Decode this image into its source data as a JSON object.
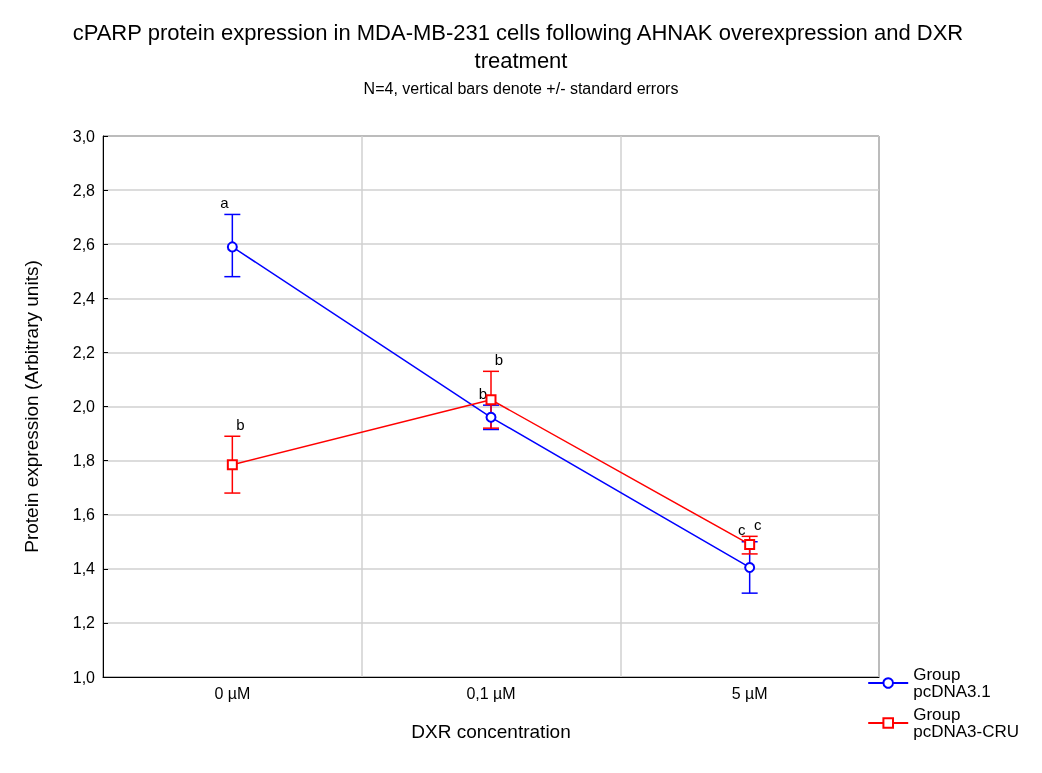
{
  "chart_data": {
    "type": "line",
    "title": "cPARP protein expression in MDA-MB-231 cells following AHNAK overexpression and DXR treatment",
    "subtitle": "N=4, vertical bars denote +/- standard errors",
    "xlabel": "DXR concentration",
    "ylabel": "Protein expression (Arbitrary units)",
    "categories": [
      "0 µM",
      "0,1 µM",
      "5 µM"
    ],
    "series": [
      {
        "name": "Group pcDNA3.1",
        "color": "#0000ff",
        "marker": "circle",
        "values": [
          2.59,
          1.96,
          1.405
        ],
        "errors": [
          [
            2.48,
            2.71
          ],
          [
            1.915,
            2.005
          ],
          [
            1.31,
            1.5
          ]
        ]
      },
      {
        "name": "Group pcDNA3-CRU",
        "color": "#ff0000",
        "marker": "square",
        "values": [
          1.785,
          2.025,
          1.49
        ],
        "errors": [
          [
            1.68,
            1.89
          ],
          [
            1.92,
            2.13
          ],
          [
            1.455,
            1.52
          ]
        ]
      }
    ],
    "ylim": [
      1,
      3
    ],
    "yticks": [
      {
        "value": 1,
        "label": "1,0"
      },
      {
        "value": 1.2,
        "label": "1,2"
      },
      {
        "value": 1.4,
        "label": "1,4"
      },
      {
        "value": 1.6,
        "label": "1,6"
      },
      {
        "value": 1.8,
        "label": "1,8"
      },
      {
        "value": 2,
        "label": "2,0"
      },
      {
        "value": 2.2,
        "label": "2,2"
      },
      {
        "value": 2.4,
        "label": "2,4"
      },
      {
        "value": 2.6,
        "label": "2,6"
      },
      {
        "value": 2.8,
        "label": "2,8"
      },
      {
        "value": 3,
        "label": "3,0"
      }
    ],
    "annotations": [
      {
        "text": "a",
        "x": "0 µM",
        "y": 2.71
      },
      {
        "text": "b",
        "x": "0 µM",
        "y": 1.89
      },
      {
        "text": "b",
        "x": "0,1 µM",
        "y": 2.005
      },
      {
        "text": "b",
        "x": "0,1 µM",
        "y": 2.13
      },
      {
        "text": "c",
        "x": "5 µM",
        "y": 1.5
      },
      {
        "text": "c",
        "x": "5 µM",
        "y": 1.52
      }
    ],
    "grid": true,
    "legend": "bottom right",
    "line_style": "solid"
  }
}
